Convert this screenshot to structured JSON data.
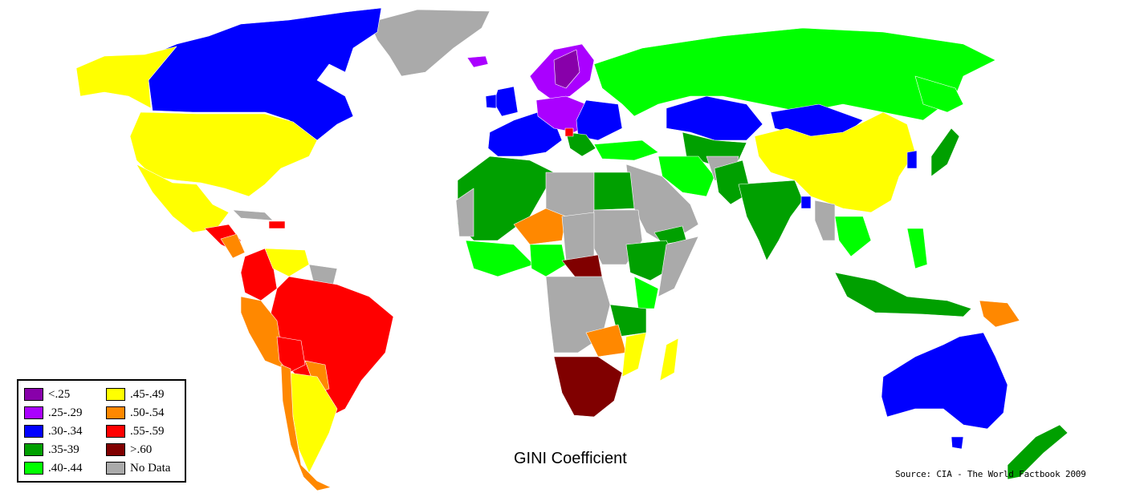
{
  "title": "GINI Coefficient",
  "source": "Source: CIA - The World Factbook 2009",
  "colors": {
    "lt25": "#8800aa",
    "r25_29": "#aa00ff",
    "r30_34": "#0000ff",
    "r35_39": "#00a000",
    "r40_44": "#00ff00",
    "r45_49": "#ffff00",
    "r50_54": "#ff8800",
    "r55_59": "#ff0000",
    "gt60": "#800000",
    "nodata": "#aaaaaa"
  },
  "legend": [
    {
      "label": "<.25",
      "color": "#8800aa"
    },
    {
      "label": ".25-.29",
      "color": "#aa00ff"
    },
    {
      "label": ".30-.34",
      "color": "#0000ff"
    },
    {
      "label": ".35-39",
      "color": "#00a000"
    },
    {
      "label": ".40-.44",
      "color": "#00ff00"
    },
    {
      "label": ".45-.49",
      "color": "#ffff00"
    },
    {
      "label": ".50-.54",
      "color": "#ff8800"
    },
    {
      "label": ".55-.59",
      "color": "#ff0000"
    },
    {
      "label": ">.60",
      "color": "#800000"
    },
    {
      "label": "No Data",
      "color": "#aaaaaa"
    }
  ]
}
